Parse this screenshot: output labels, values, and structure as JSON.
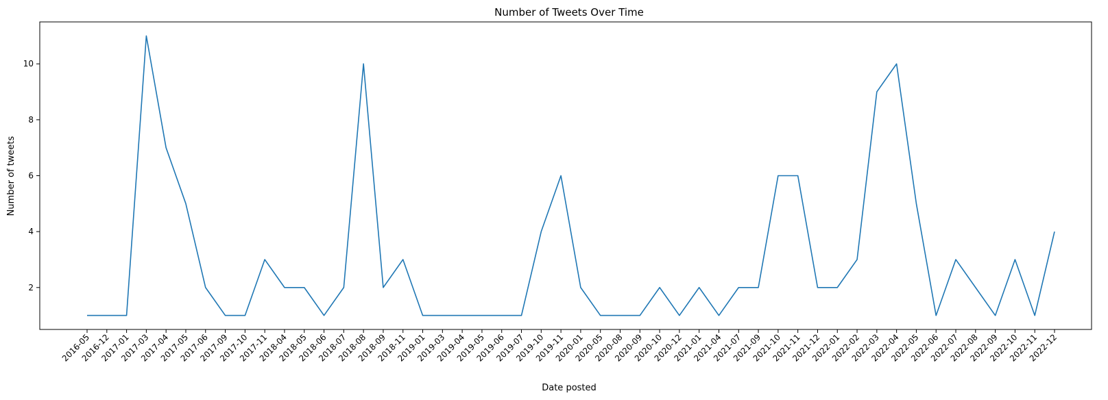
{
  "chart_data": {
    "type": "line",
    "title": "Number of Tweets Over Time",
    "xlabel": "Date posted",
    "ylabel": "Number of tweets",
    "categories": [
      "2016-05",
      "2016-12",
      "2017-01",
      "2017-03",
      "2017-04",
      "2017-05",
      "2017-06",
      "2017-09",
      "2017-10",
      "2017-11",
      "2018-04",
      "2018-05",
      "2018-06",
      "2018-07",
      "2018-08",
      "2018-09",
      "2018-11",
      "2019-01",
      "2019-03",
      "2019-04",
      "2019-05",
      "2019-06",
      "2019-07",
      "2019-10",
      "2019-11",
      "2020-01",
      "2020-05",
      "2020-08",
      "2020-09",
      "2020-10",
      "2020-12",
      "2021-01",
      "2021-04",
      "2021-07",
      "2021-09",
      "2021-10",
      "2021-11",
      "2021-12",
      "2022-01",
      "2022-02",
      "2022-03",
      "2022-04",
      "2022-05",
      "2022-06",
      "2022-07",
      "2022-08",
      "2022-09",
      "2022-10",
      "2022-11",
      "2022-12"
    ],
    "series": [
      {
        "values": [
          1,
          1,
          1,
          11,
          7,
          5,
          2,
          1,
          1,
          3,
          2,
          2,
          1,
          2,
          10,
          2,
          3,
          1,
          1,
          1,
          1,
          1,
          1,
          4,
          6,
          2,
          1,
          1,
          1,
          2,
          1,
          2,
          1,
          2,
          2,
          6,
          6,
          2,
          2,
          3,
          9,
          10,
          5,
          1,
          3,
          2,
          1,
          3,
          1,
          4
        ],
        "color": "#1f77b4"
      }
    ],
    "ylim": [
      0.5,
      11.5
    ],
    "yticks": [
      2,
      4,
      6,
      8,
      10
    ],
    "grid": false,
    "legend": "none"
  }
}
